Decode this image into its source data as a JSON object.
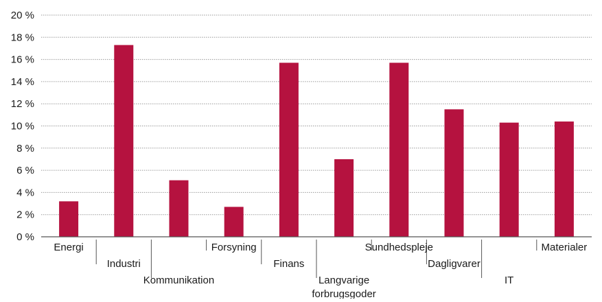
{
  "chart_data": {
    "type": "bar",
    "categories": [
      "Energi",
      "Industri",
      "Kommunikation",
      "Forsyning",
      "Finans",
      [
        "Langvarige",
        "forbrugsgoder"
      ],
      "Sundhedspleje",
      "Dagligvarer",
      "IT",
      "Materialer"
    ],
    "values": [
      3.2,
      17.3,
      5.1,
      2.7,
      15.7,
      7.0,
      15.7,
      11.5,
      10.3,
      10.4
    ],
    "ylim": [
      0,
      20
    ],
    "yticks": [
      0,
      2,
      4,
      6,
      8,
      10,
      12,
      14,
      16,
      18,
      20
    ],
    "ytick_labels": [
      "0 %",
      "2 %",
      "4 %",
      "6 %",
      "8 %",
      "10 %",
      "12 %",
      "14 %",
      "16 %",
      "18 %",
      "20 %"
    ],
    "label_levels": [
      0,
      1,
      2,
      0,
      1,
      2,
      0,
      1,
      2,
      0
    ],
    "grid": true,
    "colors": {
      "bar": "#b5123f",
      "grid": "#9a9a9a",
      "axis": "#555555"
    }
  }
}
